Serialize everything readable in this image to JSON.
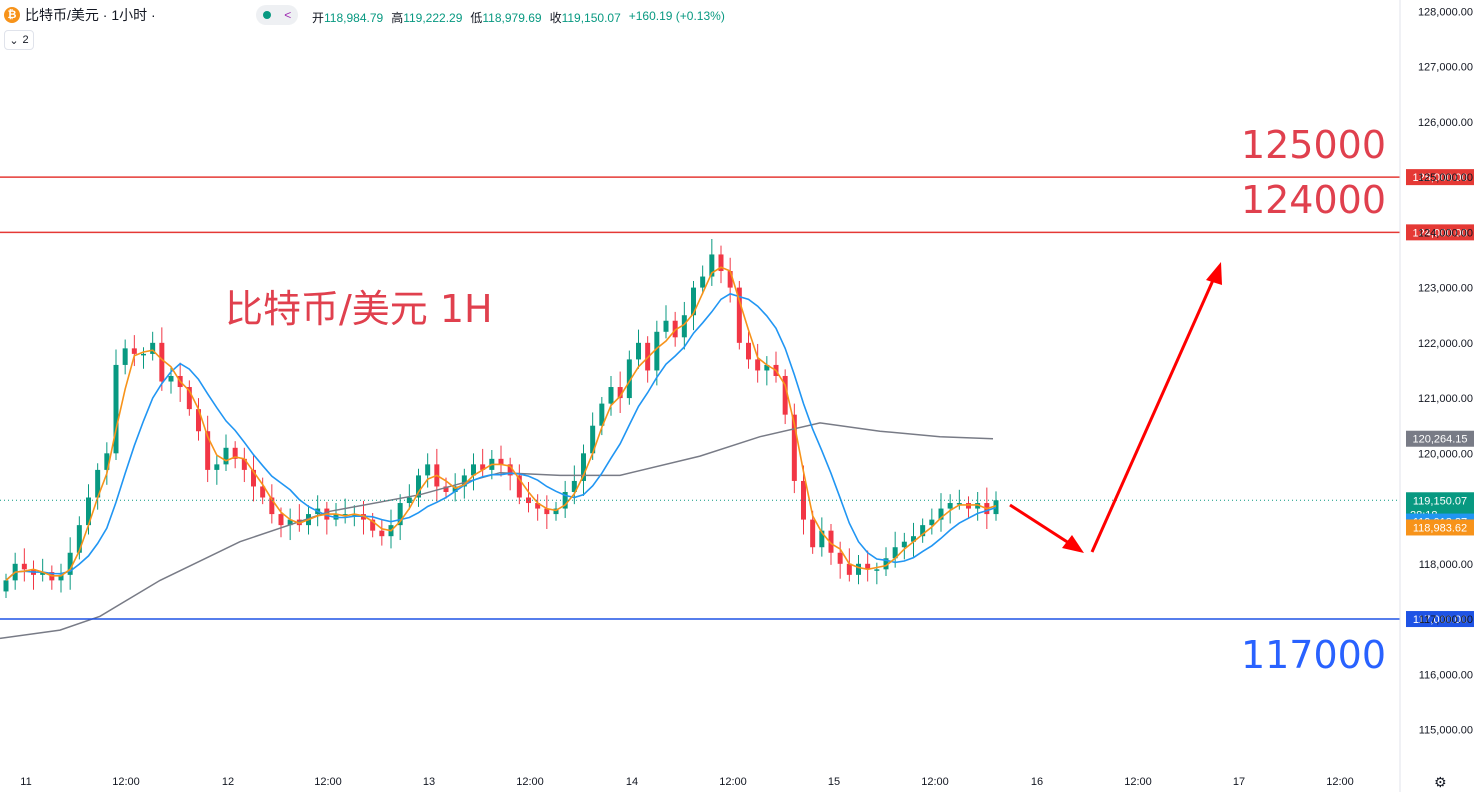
{
  "header": {
    "symbol_title": "比特币/美元 · 1小时 ·",
    "coin_icon": "bitcoin-icon",
    "ohlc": [
      {
        "key": "开",
        "value": "118,984.79"
      },
      {
        "key": "高",
        "value": "119,222.29"
      },
      {
        "key": "低",
        "value": "118,979.69"
      },
      {
        "key": "收",
        "value": "119,150.07"
      }
    ],
    "change": "+160.19 (+0.13%)",
    "collapse_count": "2"
  },
  "annotations": {
    "chart_label": "比特币/美元 1H",
    "level_125000": "125000",
    "level_124000": "124000",
    "level_117000": "117000"
  },
  "colors": {
    "up": "#089981",
    "down": "#f23645",
    "ma_fast": "#f7931a",
    "ma_mid": "#2196f3",
    "ma_slow": "#787b86",
    "resistance": "#e53935",
    "support": "#1e53e5",
    "arrow": "#ff0000"
  },
  "chart_data": {
    "type": "candlestick",
    "y_ticks": [
      "128,000.00",
      "127,000.00",
      "126,000.00",
      "125,000.00",
      "124,000.00",
      "123,000.00",
      "122,000.00",
      "121,000.00",
      "120,000.00",
      "119,000.00",
      "118,000.00",
      "117,000.00",
      "116,000.00",
      "115,000.00"
    ],
    "x_ticks": [
      "11",
      "12:00",
      "12",
      "12:00",
      "13",
      "12:00",
      "14",
      "12:00",
      "15",
      "12:00",
      "16",
      "12:00",
      "17",
      "12:00"
    ],
    "ylim": [
      114400,
      128200
    ],
    "horizontal_lines": [
      {
        "price": 125000,
        "label": "125,000.00",
        "color": "#e53935"
      },
      {
        "price": 124000,
        "label": "124,000.00",
        "color": "#e53935"
      },
      {
        "price": 117000,
        "label": "117,000.00",
        "color": "#1e53e5"
      }
    ],
    "price_tags": [
      {
        "price": 120264.15,
        "label": "120,264.15",
        "color": "#787b86"
      },
      {
        "price": 119150.07,
        "label": "119,150.07",
        "sub": "28:18",
        "color": "#089981"
      },
      {
        "price": 119018.27,
        "label": "119,018.27",
        "color": "#2196f3"
      },
      {
        "price": 118983.62,
        "label": "118,983.62",
        "color": "#f7931a"
      }
    ],
    "closes": [
      117700,
      118000,
      117900,
      117800,
      117850,
      117700,
      117800,
      118200,
      118700,
      119200,
      119700,
      120000,
      121600,
      121900,
      121800,
      121800,
      122000,
      121300,
      121400,
      121200,
      120800,
      120400,
      119700,
      119800,
      120100,
      119900,
      119700,
      119400,
      119200,
      118900,
      118700,
      118800,
      118700,
      118900,
      119000,
      118800,
      118900,
      118900,
      118900,
      118800,
      118600,
      118500,
      118700,
      119100,
      119200,
      119600,
      119800,
      119400,
      119300,
      119400,
      119600,
      119800,
      119700,
      119900,
      119800,
      119600,
      119200,
      119100,
      119000,
      118900,
      119000,
      119300,
      119500,
      120000,
      120500,
      120900,
      121200,
      121000,
      121700,
      122000,
      121500,
      122200,
      122400,
      122100,
      122500,
      123000,
      123200,
      123600,
      123300,
      123000,
      122000,
      121700,
      121500,
      121600,
      121400,
      120700,
      119500,
      118800,
      118300,
      118600,
      118200,
      118000,
      117800,
      118000,
      117900,
      117900,
      118100,
      118300,
      118400,
      118500,
      118700,
      118800,
      119000,
      119100,
      119100,
      119000,
      119100,
      118900,
      119150
    ],
    "ma_fast": "short-period moving average (orange)",
    "ma_mid": "mid-period moving average (blue)",
    "ma_slow": "long-period moving average (gray)"
  }
}
